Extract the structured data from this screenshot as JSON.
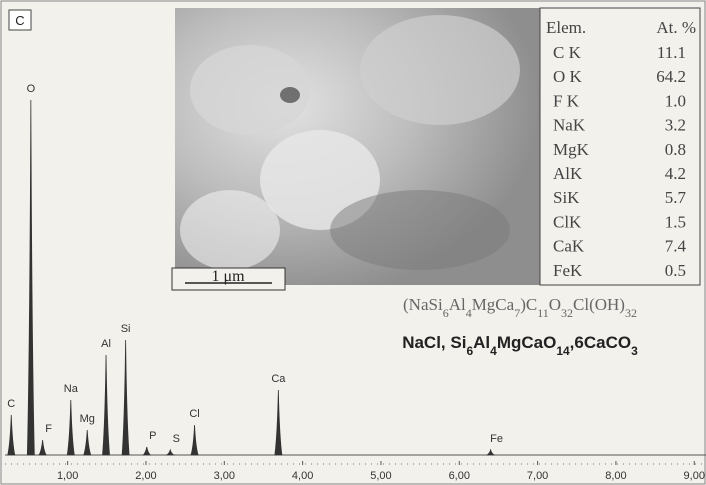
{
  "chart_data": {
    "type": "spectrum",
    "panel_label": "C",
    "x": [
      0.28,
      0.53,
      0.68,
      1.04,
      1.25,
      1.49,
      1.74,
      2.01,
      2.31,
      2.62,
      3.69,
      6.4
    ],
    "labels": [
      "C",
      "O",
      "F",
      "Na",
      "Mg",
      "Al",
      "Si",
      "P",
      "S",
      "Cl",
      "Ca",
      "Fe"
    ],
    "values": [
      40,
      355,
      15,
      55,
      25,
      100,
      115,
      8,
      5,
      30,
      65,
      5
    ],
    "color": "#333333",
    "xlim": [
      0.2,
      9.15
    ],
    "xticks": [
      {
        "value": 1,
        "label": "1,00"
      },
      {
        "value": 2,
        "label": "2,00"
      },
      {
        "value": 3,
        "label": "3,00"
      },
      {
        "value": 4,
        "label": "4,00"
      },
      {
        "value": 5,
        "label": "5,00"
      },
      {
        "value": 6,
        "label": "6,00"
      },
      {
        "value": 7,
        "label": "7,00"
      },
      {
        "value": 8,
        "label": "8,00"
      },
      {
        "value": 9,
        "label": "9,00"
      }
    ]
  },
  "image": {
    "scale_bar": "1 μm"
  },
  "table": {
    "header": [
      "Elem.",
      "At. %"
    ],
    "rows": [
      [
        "C K",
        "11.1"
      ],
      [
        "O K",
        "64.2"
      ],
      [
        "F K",
        "1.0"
      ],
      [
        "NaK",
        "3.2"
      ],
      [
        "MgK",
        "0.8"
      ],
      [
        "AlK",
        "4.2"
      ],
      [
        "SiK",
        "5.7"
      ],
      [
        "ClK",
        "1.5"
      ],
      [
        "CaK",
        "7.4"
      ],
      [
        "FeK",
        "0.5"
      ]
    ]
  },
  "formulas": [
    "(NaSi6Al4MgCa7)C11O32Cl(OH)32",
    "NaCl, Si6Al4MgCaO14,6CaCO3"
  ]
}
